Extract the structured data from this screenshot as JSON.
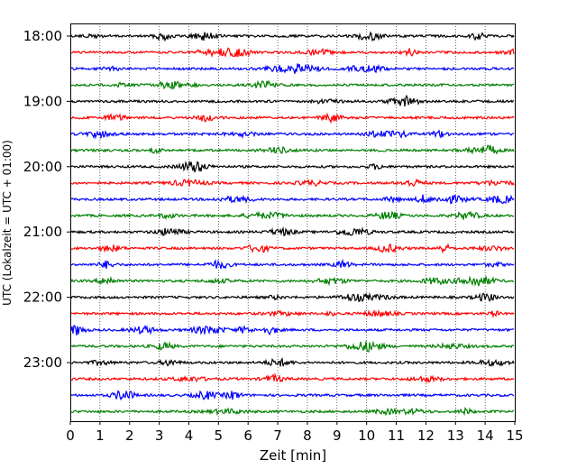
{
  "chart_data": {
    "type": "line",
    "title": "",
    "xlabel": "Zeit  [min]",
    "ylabel": "UTC (Lokalzeit = UTC + 01:00)",
    "xlim": [
      0,
      15
    ],
    "x_ticks": [
      "0",
      "1",
      "2",
      "3",
      "4",
      "5",
      "6",
      "7",
      "8",
      "9",
      "10",
      "11",
      "12",
      "13",
      "14",
      "15"
    ],
    "y_tick_labels": [
      "18:00",
      "19:00",
      "20:00",
      "21:00",
      "22:00",
      "23:00"
    ],
    "trace_interval_min": 15,
    "start_time": "18:00",
    "end_time": "23:45",
    "vertical_grid": "dotted",
    "trace_colors": [
      "#000000",
      "#ff0000",
      "#0000ff",
      "#007f00"
    ],
    "traces": [
      {
        "start": "18:00",
        "color": "#000000"
      },
      {
        "start": "18:15",
        "color": "#ff0000"
      },
      {
        "start": "18:30",
        "color": "#0000ff"
      },
      {
        "start": "18:45",
        "color": "#007f00"
      },
      {
        "start": "19:00",
        "color": "#000000"
      },
      {
        "start": "19:15",
        "color": "#ff0000"
      },
      {
        "start": "19:30",
        "color": "#0000ff"
      },
      {
        "start": "19:45",
        "color": "#007f00"
      },
      {
        "start": "20:00",
        "color": "#000000"
      },
      {
        "start": "20:15",
        "color": "#ff0000"
      },
      {
        "start": "20:30",
        "color": "#0000ff"
      },
      {
        "start": "20:45",
        "color": "#007f00"
      },
      {
        "start": "21:00",
        "color": "#000000"
      },
      {
        "start": "21:15",
        "color": "#ff0000"
      },
      {
        "start": "21:30",
        "color": "#0000ff"
      },
      {
        "start": "21:45",
        "color": "#007f00"
      },
      {
        "start": "22:00",
        "color": "#000000"
      },
      {
        "start": "22:15",
        "color": "#ff0000"
      },
      {
        "start": "22:30",
        "color": "#0000ff"
      },
      {
        "start": "22:45",
        "color": "#007f00"
      },
      {
        "start": "23:00",
        "color": "#000000"
      },
      {
        "start": "23:15",
        "color": "#ff0000"
      },
      {
        "start": "23:30",
        "color": "#0000ff"
      },
      {
        "start": "23:45",
        "color": "#007f00"
      }
    ]
  }
}
